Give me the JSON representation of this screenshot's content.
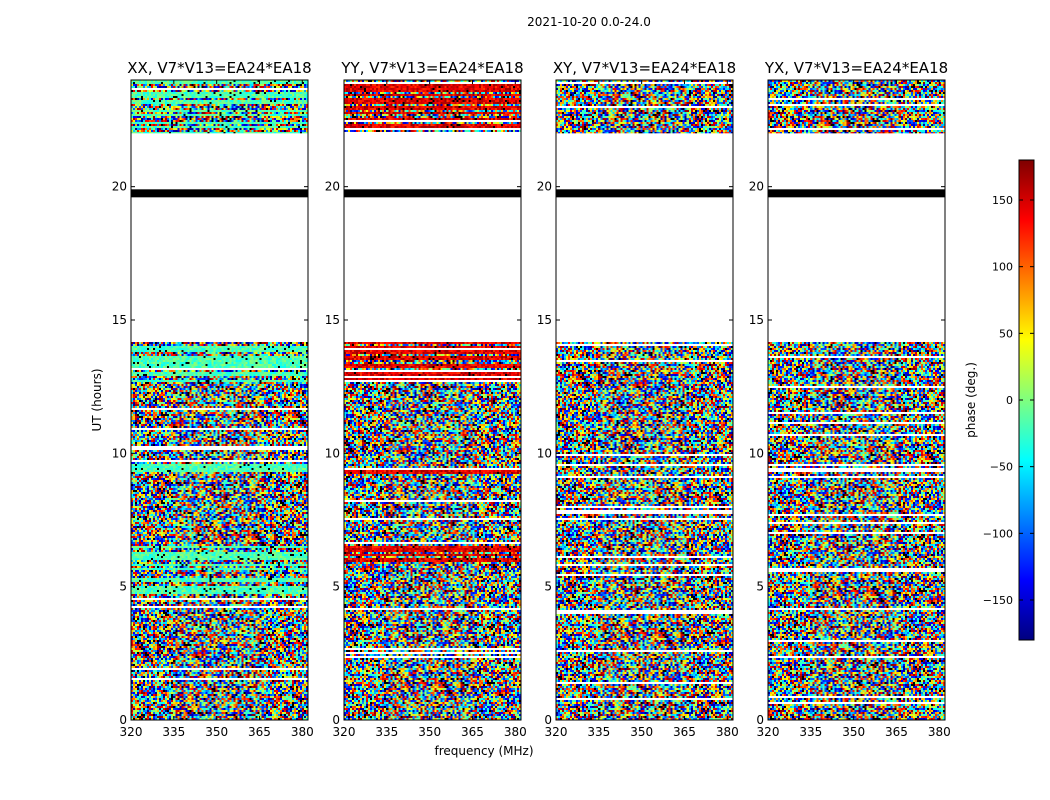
{
  "chart_data": {
    "type": "heatmap",
    "suptitle": "2021-10-20 0.0-24.0",
    "xlabel": "frequency (MHz)",
    "ylabel": "UT (hours)",
    "xlim": [
      320,
      382
    ],
    "ylim": [
      0,
      24
    ],
    "xticks": [
      320,
      335,
      350,
      365,
      380
    ],
    "yticks": [
      0,
      5,
      10,
      15,
      20
    ],
    "colorbar": {
      "label": "phase (deg.)",
      "range": [
        -180,
        180
      ],
      "ticks": [
        150,
        100,
        50,
        0,
        -50,
        -100,
        -150
      ],
      "tick_labels": [
        "150",
        "100",
        "50",
        "0",
        "−50",
        "−100",
        "−150"
      ],
      "colormap": [
        "#00007f",
        "#0000ff",
        "#007fff",
        "#00ffff",
        "#7fff7f",
        "#ffff00",
        "#ff7f00",
        "#ff0000",
        "#7f0000"
      ]
    },
    "data_blocks_ut": [
      [
        0.0,
        3.6
      ],
      [
        3.6,
        12.6
      ],
      [
        12.6,
        14.2
      ],
      [
        22.0,
        24.0
      ]
    ],
    "empty_interval_ut": [
      14.2,
      22.0
    ],
    "flag_band_ut": [
      19.6,
      19.9
    ],
    "panels": [
      {
        "title": "XX, V7*V13=EA24*EA18",
        "bias": "cyan"
      },
      {
        "title": "YY, V7*V13=EA24*EA18",
        "bias": "red"
      },
      {
        "title": "XY, V7*V13=EA24*EA18",
        "bias": "none"
      },
      {
        "title": "YX, V7*V13=EA24*EA18",
        "bias": "none"
      }
    ]
  }
}
